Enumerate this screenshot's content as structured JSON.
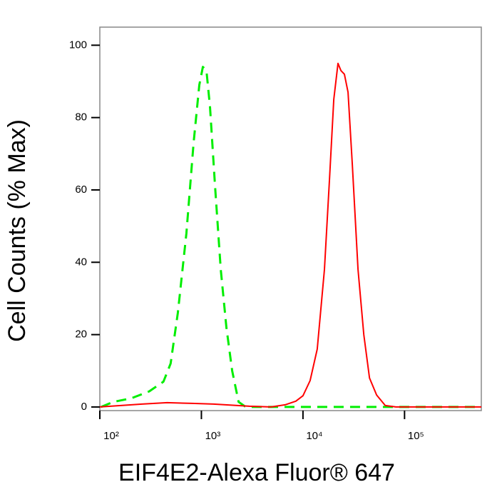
{
  "chart_data": {
    "type": "line",
    "xlabel": "EIF4E2-Alexa Fluor® 647",
    "ylabel": "Cell Counts (% Max)",
    "xscale": "log",
    "xlim": [
      100,
      570000
    ],
    "ylim": [
      -1,
      105
    ],
    "xticks": [
      {
        "value": 100,
        "label": "10²"
      },
      {
        "value": 1000,
        "label": "10³"
      },
      {
        "value": 10000,
        "label": "10⁴"
      },
      {
        "value": 100000,
        "label": "10⁵"
      }
    ],
    "yticks": [
      0,
      20,
      40,
      60,
      80,
      100
    ],
    "series": [
      {
        "color": "#00ee00",
        "dashed": true,
        "x": [
          103,
          136,
          204,
          306,
          423,
          498,
          586,
          712,
          838,
          953,
          1033,
          1120,
          1216,
          1362,
          1550,
          1763,
          2009,
          2324,
          2735,
          570000
        ],
        "values": [
          0,
          1.4,
          2.4,
          4.3,
          7,
          12,
          26,
          48,
          73,
          89,
          94,
          93,
          83,
          61,
          38,
          22,
          10,
          1.4,
          0,
          0
        ]
      },
      {
        "color": "#ff0000",
        "dashed": false,
        "x": [
          100,
          260,
          459,
          809,
          1318,
          2965,
          4820,
          6670,
          8510,
          10000,
          11750,
          13830,
          16260,
          18240,
          20100,
          22130,
          23620,
          25600,
          27790,
          30620,
          34860,
          39690,
          45190,
          53110,
          64560,
          82220,
          570000
        ],
        "values": [
          0,
          0.8,
          1.2,
          1,
          0.8,
          0.2,
          0,
          0.6,
          1.6,
          3.1,
          7.3,
          16,
          38,
          63,
          85,
          95,
          93,
          92,
          87,
          67,
          38,
          20,
          8,
          3.3,
          0.4,
          0,
          0
        ]
      }
    ]
  }
}
